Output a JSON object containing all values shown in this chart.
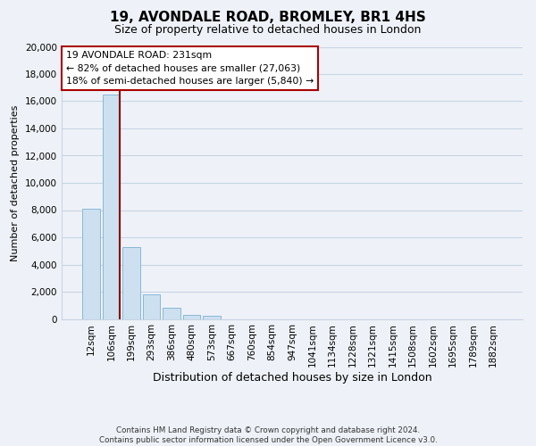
{
  "title": "19, AVONDALE ROAD, BROMLEY, BR1 4HS",
  "subtitle": "Size of property relative to detached houses in London",
  "xlabel": "Distribution of detached houses by size in London",
  "ylabel": "Number of detached properties",
  "bar_labels": [
    "12sqm",
    "106sqm",
    "199sqm",
    "293sqm",
    "386sqm",
    "480sqm",
    "573sqm",
    "667sqm",
    "760sqm",
    "854sqm",
    "947sqm",
    "1041sqm",
    "1134sqm",
    "1228sqm",
    "1321sqm",
    "1415sqm",
    "1508sqm",
    "1602sqm",
    "1695sqm",
    "1789sqm",
    "1882sqm"
  ],
  "bar_values": [
    8100,
    16500,
    5300,
    1800,
    800,
    300,
    250,
    0,
    0,
    0,
    0,
    0,
    0,
    0,
    0,
    0,
    0,
    0,
    0,
    0,
    0
  ],
  "bar_color": "#cde0f0",
  "bar_edge_color": "#88b8d8",
  "property_line_color": "#8b0000",
  "ylim": [
    0,
    20000
  ],
  "yticks": [
    0,
    2000,
    4000,
    6000,
    8000,
    10000,
    12000,
    14000,
    16000,
    18000,
    20000
  ],
  "annotation_title": "19 AVONDALE ROAD: 231sqm",
  "annotation_line1": "← 82% of detached houses are smaller (27,063)",
  "annotation_line2": "18% of semi-detached houses are larger (5,840) →",
  "annotation_box_color": "#ffffff",
  "annotation_box_edge": "#aa0000",
  "footnote1": "Contains HM Land Registry data © Crown copyright and database right 2024.",
  "footnote2": "Contains public sector information licensed under the Open Government Licence v3.0.",
  "bg_color": "#eef2f8",
  "plot_bg_color": "#eef2f8",
  "grid_color": "#c8d4e4",
  "title_fontsize": 11,
  "subtitle_fontsize": 9,
  "tick_fontsize": 7.5,
  "xlabel_fontsize": 9,
  "ylabel_fontsize": 8
}
